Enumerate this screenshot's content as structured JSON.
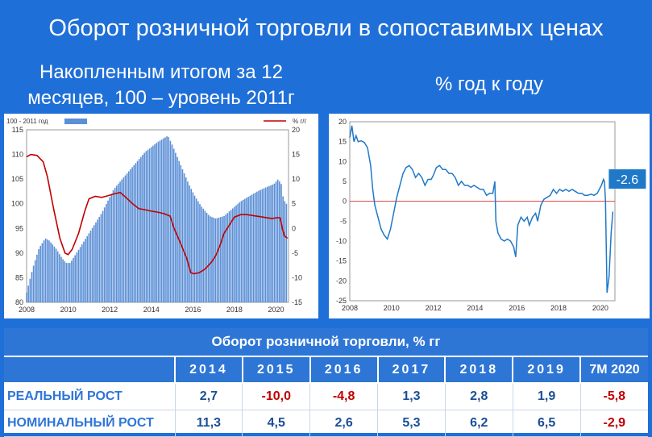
{
  "header": {
    "title": "Оборот розничной торговли в сопоставимых ценах",
    "left_subtitle_line1": "Накопленным итогом за 12",
    "left_subtitle_line2": "месяцев, 100 – уровень 2011г",
    "right_subtitle": "% год к году"
  },
  "colors": {
    "background": "#1f6fd8",
    "bars": "#5b8fd6",
    "red_line": "#c00000",
    "blue_line": "#1f78c8",
    "table_header": "#2e76d6"
  },
  "chart_data": [
    {
      "type": "bar",
      "legend": [
        {
          "name": "100 - 2011 год",
          "kind": "bar"
        },
        {
          "name": "% г/г",
          "kind": "line"
        }
      ],
      "x_ticks": [
        "2008",
        "2010",
        "2012",
        "2014",
        "2016",
        "2018",
        "2020"
      ],
      "y_left_ticks": [
        "80",
        "85",
        "90",
        "95",
        "100",
        "105",
        "110",
        "115"
      ],
      "y_right_ticks": [
        "-15",
        "-10",
        "-5",
        "0",
        "5",
        "10",
        "15",
        "20"
      ],
      "ylim_left": [
        80,
        115
      ],
      "ylim_right": [
        -15,
        20
      ],
      "xlim": [
        2008,
        2020.6
      ],
      "bar_series": {
        "name": "100 - 2011 год",
        "points": [
          [
            2008.0,
            82
          ],
          [
            2008.3,
            87
          ],
          [
            2008.6,
            91
          ],
          [
            2008.9,
            93
          ],
          [
            2009.1,
            92.5
          ],
          [
            2009.4,
            91
          ],
          [
            2009.7,
            89
          ],
          [
            2009.9,
            88
          ],
          [
            2010.1,
            88
          ],
          [
            2010.4,
            90
          ],
          [
            2010.7,
            92
          ],
          [
            2011.0,
            94
          ],
          [
            2011.3,
            96
          ],
          [
            2011.6,
            98
          ],
          [
            2011.9,
            100.5
          ],
          [
            2012.2,
            103
          ],
          [
            2012.5,
            104.5
          ],
          [
            2012.8,
            106
          ],
          [
            2013.1,
            107.5
          ],
          [
            2013.4,
            109
          ],
          [
            2013.7,
            110.5
          ],
          [
            2014.0,
            111.5
          ],
          [
            2014.3,
            112.5
          ],
          [
            2014.6,
            113.3
          ],
          [
            2014.8,
            113.8
          ],
          [
            2015.0,
            112
          ],
          [
            2015.2,
            110
          ],
          [
            2015.5,
            107
          ],
          [
            2015.8,
            104
          ],
          [
            2016.1,
            101.5
          ],
          [
            2016.4,
            99.5
          ],
          [
            2016.8,
            97.5
          ],
          [
            2017.1,
            97
          ],
          [
            2017.5,
            97.5
          ],
          [
            2017.9,
            99
          ],
          [
            2018.3,
            100.5
          ],
          [
            2018.7,
            101.5
          ],
          [
            2019.1,
            102.5
          ],
          [
            2019.5,
            103.3
          ],
          [
            2019.9,
            104
          ],
          [
            2020.1,
            105
          ],
          [
            2020.25,
            104
          ],
          [
            2020.35,
            101
          ],
          [
            2020.5,
            100
          ]
        ]
      },
      "line_series": {
        "name": "% г/г",
        "points": [
          [
            2008.0,
            14.5
          ],
          [
            2008.2,
            15
          ],
          [
            2008.5,
            14.8
          ],
          [
            2008.8,
            13.5
          ],
          [
            2009.0,
            10.5
          ],
          [
            2009.3,
            4
          ],
          [
            2009.6,
            -2
          ],
          [
            2009.85,
            -5
          ],
          [
            2010.0,
            -5.3
          ],
          [
            2010.2,
            -4.2
          ],
          [
            2010.5,
            -1
          ],
          [
            2010.8,
            3.5
          ],
          [
            2011.0,
            6
          ],
          [
            2011.3,
            6.5
          ],
          [
            2011.6,
            6.3
          ],
          [
            2011.9,
            6.6
          ],
          [
            2012.2,
            7
          ],
          [
            2012.5,
            7.3
          ],
          [
            2012.8,
            6.2
          ],
          [
            2013.1,
            5
          ],
          [
            2013.4,
            4
          ],
          [
            2013.7,
            3.8
          ],
          [
            2014.0,
            3.5
          ],
          [
            2014.3,
            3.3
          ],
          [
            2014.6,
            3
          ],
          [
            2014.9,
            2.5
          ],
          [
            2015.1,
            0
          ],
          [
            2015.4,
            -3
          ],
          [
            2015.7,
            -6
          ],
          [
            2015.9,
            -9
          ],
          [
            2016.05,
            -9.2
          ],
          [
            2016.3,
            -9
          ],
          [
            2016.6,
            -8.2
          ],
          [
            2016.9,
            -6.8
          ],
          [
            2017.1,
            -5.5
          ],
          [
            2017.3,
            -3.5
          ],
          [
            2017.5,
            -1
          ],
          [
            2017.8,
            1
          ],
          [
            2018.0,
            2.3
          ],
          [
            2018.3,
            2.8
          ],
          [
            2018.6,
            2.8
          ],
          [
            2018.9,
            2.6
          ],
          [
            2019.2,
            2.4
          ],
          [
            2019.5,
            2.2
          ],
          [
            2019.8,
            2
          ],
          [
            2020.1,
            2.2
          ],
          [
            2020.2,
            2.1
          ],
          [
            2020.3,
            0
          ],
          [
            2020.4,
            -1.5
          ],
          [
            2020.55,
            -2
          ]
        ]
      }
    },
    {
      "type": "line",
      "series_label": "-2.6",
      "x_ticks": [
        "2008",
        "2010",
        "2012",
        "2014",
        "2016",
        "2018",
        "2020"
      ],
      "y_ticks": [
        "-25",
        "-20",
        "-15",
        "-10",
        "-5",
        "0",
        "5",
        "10",
        "15",
        "20"
      ],
      "ylim": [
        -25,
        20
      ],
      "xlim": [
        2008,
        2020.7
      ],
      "zero_line": true,
      "series": {
        "points": [
          [
            2008.0,
            16
          ],
          [
            2008.1,
            19
          ],
          [
            2008.2,
            15
          ],
          [
            2008.3,
            16.5
          ],
          [
            2008.4,
            15
          ],
          [
            2008.55,
            15.2
          ],
          [
            2008.7,
            14.8
          ],
          [
            2008.85,
            13.5
          ],
          [
            2009.0,
            9
          ],
          [
            2009.1,
            3
          ],
          [
            2009.2,
            -1
          ],
          [
            2009.35,
            -4
          ],
          [
            2009.5,
            -7
          ],
          [
            2009.65,
            -8.5
          ],
          [
            2009.8,
            -9.5
          ],
          [
            2009.95,
            -7
          ],
          [
            2010.1,
            -3
          ],
          [
            2010.25,
            1
          ],
          [
            2010.4,
            4
          ],
          [
            2010.55,
            7
          ],
          [
            2010.7,
            8.5
          ],
          [
            2010.85,
            9
          ],
          [
            2011.0,
            8
          ],
          [
            2011.15,
            6
          ],
          [
            2011.3,
            7
          ],
          [
            2011.45,
            6
          ],
          [
            2011.6,
            4
          ],
          [
            2011.75,
            5.5
          ],
          [
            2011.9,
            5.5
          ],
          [
            2012.0,
            6.5
          ],
          [
            2012.15,
            8.5
          ],
          [
            2012.3,
            9
          ],
          [
            2012.45,
            8
          ],
          [
            2012.6,
            8
          ],
          [
            2012.75,
            7
          ],
          [
            2012.9,
            7
          ],
          [
            2013.05,
            6
          ],
          [
            2013.2,
            4
          ],
          [
            2013.35,
            5
          ],
          [
            2013.5,
            4
          ],
          [
            2013.65,
            4
          ],
          [
            2013.8,
            3.5
          ],
          [
            2013.95,
            4
          ],
          [
            2014.1,
            3.5
          ],
          [
            2014.25,
            3
          ],
          [
            2014.4,
            3
          ],
          [
            2014.55,
            1.5
          ],
          [
            2014.7,
            2
          ],
          [
            2014.85,
            2
          ],
          [
            2014.95,
            5
          ],
          [
            2015.0,
            -5
          ],
          [
            2015.1,
            -8
          ],
          [
            2015.25,
            -9.5
          ],
          [
            2015.4,
            -10
          ],
          [
            2015.55,
            -9.5
          ],
          [
            2015.7,
            -10
          ],
          [
            2015.85,
            -11.5
          ],
          [
            2015.95,
            -14
          ],
          [
            2016.05,
            -6
          ],
          [
            2016.2,
            -4
          ],
          [
            2016.35,
            -5
          ],
          [
            2016.5,
            -4
          ],
          [
            2016.6,
            -6
          ],
          [
            2016.75,
            -4
          ],
          [
            2016.9,
            -3
          ],
          [
            2017.0,
            -5
          ],
          [
            2017.15,
            -1
          ],
          [
            2017.3,
            0.5
          ],
          [
            2017.45,
            1
          ],
          [
            2017.6,
            1.5
          ],
          [
            2017.75,
            3
          ],
          [
            2017.9,
            2
          ],
          [
            2018.05,
            3
          ],
          [
            2018.2,
            2.5
          ],
          [
            2018.35,
            3
          ],
          [
            2018.5,
            2.5
          ],
          [
            2018.65,
            3
          ],
          [
            2018.8,
            2.5
          ],
          [
            2018.95,
            2
          ],
          [
            2019.1,
            2
          ],
          [
            2019.25,
            1.5
          ],
          [
            2019.4,
            1.5
          ],
          [
            2019.55,
            1.8
          ],
          [
            2019.7,
            1.5
          ],
          [
            2019.85,
            2
          ],
          [
            2019.95,
            3
          ],
          [
            2020.05,
            4
          ],
          [
            2020.15,
            5.5
          ],
          [
            2020.2,
            5
          ],
          [
            2020.25,
            0
          ],
          [
            2020.32,
            -23
          ],
          [
            2020.42,
            -19
          ],
          [
            2020.52,
            -8
          ],
          [
            2020.6,
            -2.6
          ]
        ]
      }
    }
  ],
  "table": {
    "title": "Оборот розничной торговли, % гг",
    "columns": [
      "2014",
      "2015",
      "2016",
      "2017",
      "2018",
      "2019",
      "7М 2020"
    ],
    "rows": [
      {
        "label": "РЕАЛЬНЫЙ РОСТ",
        "values": [
          "2,7",
          "-10,0",
          "-4,8",
          "1,3",
          "2,8",
          "1,9",
          "-5,8"
        ]
      },
      {
        "label": "НОМИНАЛЬНЫЙ РОСТ",
        "values": [
          "11,3",
          "4,5",
          "2,6",
          "5,3",
          "6,2",
          "6,5",
          "-2,9"
        ]
      }
    ]
  }
}
